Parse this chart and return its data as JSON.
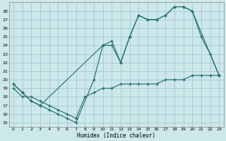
{
  "xlabel": "Humidex (Indice chaleur)",
  "bg_color": "#cce8ea",
  "grid_color": "#aacdd2",
  "line_color": "#1e6b6b",
  "xlim": [
    -0.5,
    23.5
  ],
  "ylim": [
    14.5,
    29.0
  ],
  "xticks": [
    0,
    1,
    2,
    3,
    4,
    5,
    6,
    7,
    8,
    9,
    10,
    11,
    12,
    13,
    14,
    15,
    16,
    17,
    18,
    19,
    20,
    21,
    22,
    23
  ],
  "yticks": [
    15,
    16,
    17,
    18,
    19,
    20,
    21,
    22,
    23,
    24,
    25,
    26,
    27,
    28
  ],
  "line1_x": [
    0,
    1,
    2,
    3,
    10,
    11,
    12,
    13,
    14,
    15,
    16,
    17,
    18,
    19,
    20,
    23
  ],
  "line1_y": [
    19.5,
    18.5,
    17.5,
    17.0,
    24.0,
    24.5,
    22.0,
    25.0,
    27.5,
    27.0,
    27.0,
    27.5,
    28.5,
    28.5,
    28.0,
    20.5
  ],
  "line2_x": [
    0,
    1,
    2,
    3,
    4,
    5,
    6,
    7,
    9,
    10,
    11,
    12,
    13,
    14,
    15,
    16,
    17,
    18,
    19,
    20,
    21,
    22,
    23
  ],
  "line2_y": [
    19.5,
    18.5,
    17.5,
    17.0,
    16.5,
    16.0,
    15.5,
    15.0,
    20.0,
    24.0,
    24.0,
    22.0,
    25.0,
    27.5,
    27.0,
    27.0,
    27.5,
    28.5,
    28.5,
    28.0,
    25.0,
    23.0,
    20.5
  ],
  "line3_x": [
    0,
    1,
    2,
    3,
    4,
    5,
    6,
    7,
    8,
    9,
    10,
    11,
    12,
    13,
    14,
    15,
    16,
    17,
    18,
    19,
    20,
    21,
    22,
    23
  ],
  "line3_y": [
    19.0,
    18.0,
    18.0,
    17.5,
    17.0,
    16.5,
    16.0,
    15.5,
    18.0,
    18.5,
    19.0,
    19.0,
    19.5,
    19.5,
    19.5,
    19.5,
    19.5,
    20.0,
    20.0,
    20.0,
    20.5,
    20.5,
    20.5,
    20.5
  ]
}
